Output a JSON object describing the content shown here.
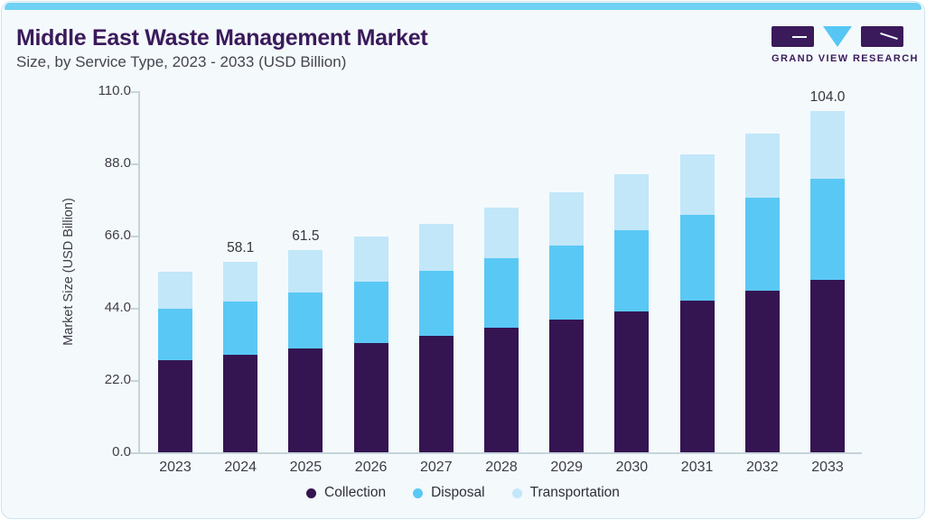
{
  "header": {
    "title": "Middle East Waste Management Market",
    "subtitle": "Size, by Service Type, 2023 - 2033 (USD Billion)",
    "logo_text": "GRAND VIEW RESEARCH"
  },
  "colors": {
    "accent_bar": "#6FD1F4",
    "card_background": "#F4F9FC",
    "card_border": "#CFE3EF",
    "title_text": "#3A1A5B",
    "subtitle_text": "#45454F",
    "axis_line": "#C6D3DB",
    "tick_text": "#3D3D47"
  },
  "chart_data": {
    "type": "bar",
    "stacked": true,
    "title": "Middle East Waste Management Market Size, by Service Type, 2023 - 2033 (USD Billion)",
    "categories": [
      "2023",
      "2024",
      "2025",
      "2026",
      "2027",
      "2028",
      "2029",
      "2030",
      "2031",
      "2032",
      "2033"
    ],
    "series": [
      {
        "name": "Collection",
        "color": "#341551",
        "values": [
          28.0,
          29.7,
          31.5,
          33.4,
          35.6,
          38.0,
          40.4,
          43.0,
          46.2,
          49.1,
          52.6
        ]
      },
      {
        "name": "Disposal",
        "color": "#5AC8F5",
        "values": [
          15.6,
          16.2,
          17.2,
          18.5,
          19.7,
          21.2,
          22.7,
          24.7,
          26.2,
          28.5,
          30.6
        ]
      },
      {
        "name": "Transportation",
        "color": "#C2E7F9",
        "values": [
          11.3,
          12.2,
          12.8,
          13.7,
          14.4,
          15.2,
          16.0,
          16.9,
          18.4,
          19.4,
          20.8
        ]
      }
    ],
    "totals": [
      54.9,
      58.1,
      61.5,
      65.6,
      69.7,
      74.4,
      79.1,
      84.6,
      90.8,
      97.0,
      104.0
    ],
    "total_labels": [
      "",
      "58.1",
      "61.5",
      "",
      "",
      "",
      "",
      "",
      "",
      "",
      "104.0"
    ],
    "xlabel": "",
    "ylabel": "Market Size (USD Billion)",
    "ylim": [
      0,
      110
    ],
    "ytick_values": [
      0,
      22,
      44,
      66,
      88,
      110
    ],
    "ytick_labels": [
      "0.0",
      "22.0",
      "44.0",
      "66.0",
      "88.0",
      "110.0"
    ],
    "grid": false,
    "legend_position": "bottom",
    "legend": [
      "Collection",
      "Disposal",
      "Transportation"
    ]
  }
}
